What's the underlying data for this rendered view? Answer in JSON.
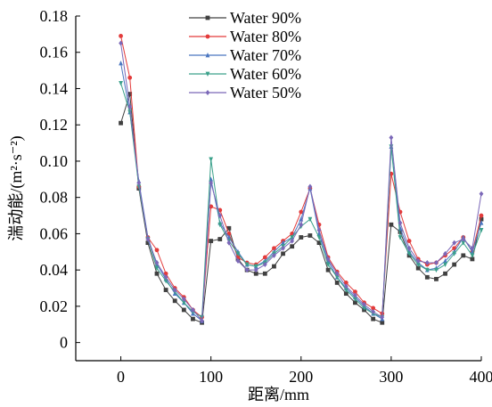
{
  "chart_data": {
    "type": "line",
    "xlabel": "距离/mm",
    "ylabel": "湍动能/(m²·s⁻²)",
    "xlim": [
      -50,
      400
    ],
    "ylim": [
      -0.01,
      0.18
    ],
    "xticks": [
      "0",
      "100",
      "200",
      "300",
      "400"
    ],
    "yticks": [
      "0",
      "0.02",
      "0.04",
      "0.06",
      "0.08",
      "0.10",
      "0.12",
      "0.14",
      "0.16",
      "0.18"
    ],
    "legend_position": "top-center",
    "x": [
      0,
      10,
      20,
      30,
      40,
      50,
      60,
      70,
      80,
      90,
      100,
      110,
      120,
      130,
      140,
      150,
      160,
      170,
      180,
      190,
      200,
      210,
      220,
      230,
      240,
      250,
      260,
      270,
      280,
      290,
      300,
      310,
      320,
      330,
      340,
      350,
      360,
      370,
      380,
      390,
      400
    ],
    "series": [
      {
        "name": "Water 90%",
        "color": "#404040",
        "marker": "square",
        "values": [
          0.121,
          0.137,
          0.085,
          0.055,
          0.038,
          0.029,
          0.023,
          0.018,
          0.013,
          0.011,
          0.056,
          0.057,
          0.063,
          0.046,
          0.04,
          0.038,
          0.038,
          0.042,
          0.049,
          0.053,
          0.058,
          0.059,
          0.055,
          0.04,
          0.033,
          0.027,
          0.022,
          0.018,
          0.013,
          0.011,
          0.065,
          0.061,
          0.048,
          0.041,
          0.036,
          0.035,
          0.038,
          0.043,
          0.048,
          0.046,
          0.068
        ]
      },
      {
        "name": "Water 80%",
        "color": "#e33b3b",
        "marker": "circle",
        "values": [
          0.169,
          0.146,
          0.086,
          0.058,
          0.051,
          0.038,
          0.03,
          0.025,
          0.018,
          0.014,
          0.075,
          0.073,
          0.06,
          0.047,
          0.044,
          0.043,
          0.047,
          0.052,
          0.056,
          0.06,
          0.072,
          0.085,
          0.065,
          0.047,
          0.039,
          0.033,
          0.028,
          0.022,
          0.019,
          0.016,
          0.093,
          0.072,
          0.056,
          0.046,
          0.043,
          0.044,
          0.048,
          0.052,
          0.058,
          0.05,
          0.07
        ]
      },
      {
        "name": "Water 70%",
        "color": "#4a76c0",
        "marker": "triangle",
        "values": [
          0.154,
          0.127,
          0.089,
          0.058,
          0.043,
          0.035,
          0.027,
          0.022,
          0.016,
          0.012,
          0.09,
          0.066,
          0.058,
          0.05,
          0.043,
          0.042,
          0.045,
          0.05,
          0.055,
          0.058,
          0.068,
          0.085,
          0.06,
          0.045,
          0.036,
          0.03,
          0.025,
          0.02,
          0.016,
          0.013,
          0.108,
          0.063,
          0.05,
          0.044,
          0.04,
          0.041,
          0.045,
          0.05,
          0.058,
          0.05,
          0.066
        ]
      },
      {
        "name": "Water 60%",
        "color": "#3aa08a",
        "marker": "triangle-down",
        "values": [
          0.143,
          0.127,
          0.086,
          0.057,
          0.041,
          0.034,
          0.028,
          0.022,
          0.017,
          0.014,
          0.101,
          0.065,
          0.056,
          0.049,
          0.043,
          0.042,
          0.044,
          0.049,
          0.053,
          0.058,
          0.064,
          0.068,
          0.058,
          0.043,
          0.036,
          0.029,
          0.024,
          0.019,
          0.016,
          0.014,
          0.108,
          0.058,
          0.049,
          0.043,
          0.04,
          0.04,
          0.043,
          0.049,
          0.055,
          0.048,
          0.062
        ]
      },
      {
        "name": "Water 50%",
        "color": "#7b68b8",
        "marker": "diamond",
        "values": [
          0.165,
          0.13,
          0.088,
          0.057,
          0.044,
          0.036,
          0.029,
          0.024,
          0.018,
          0.012,
          0.088,
          0.07,
          0.055,
          0.045,
          0.04,
          0.04,
          0.043,
          0.048,
          0.052,
          0.056,
          0.065,
          0.086,
          0.062,
          0.046,
          0.038,
          0.031,
          0.026,
          0.021,
          0.017,
          0.014,
          0.113,
          0.066,
          0.052,
          0.045,
          0.044,
          0.044,
          0.049,
          0.055,
          0.057,
          0.052,
          0.082
        ]
      }
    ]
  }
}
